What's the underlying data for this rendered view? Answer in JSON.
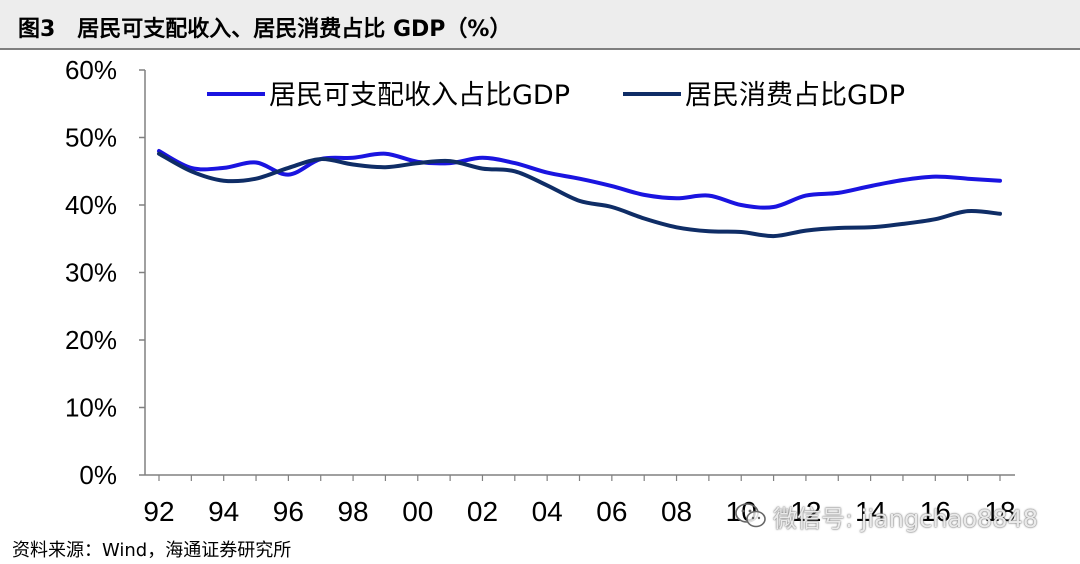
{
  "header": {
    "title": "图3　居民可支配收入、居民消费占比 GDP（%）"
  },
  "footer": {
    "source": "资料来源：Wind，海通证券研究所"
  },
  "watermark": {
    "text": "微信号: jiangchao8848"
  },
  "colors": {
    "income": "#1a14e0",
    "consumption": "#0f2d66",
    "axis": "#808080"
  },
  "chart_data": {
    "type": "line",
    "x": [
      1992,
      1993,
      1994,
      1995,
      1996,
      1997,
      1998,
      1999,
      2000,
      2001,
      2002,
      2003,
      2004,
      2005,
      2006,
      2007,
      2008,
      2009,
      2010,
      2011,
      2012,
      2013,
      2014,
      2015,
      2016,
      2017,
      2018
    ],
    "x_tick_labels": [
      "92",
      "94",
      "96",
      "98",
      "00",
      "02",
      "04",
      "06",
      "08",
      "10",
      "12",
      "14",
      "16",
      "18"
    ],
    "y_tick_labels": [
      "0%",
      "10%",
      "20%",
      "30%",
      "40%",
      "50%",
      "60%"
    ],
    "ylim": [
      0,
      60
    ],
    "legend_position": "top",
    "series": [
      {
        "name": "居民可支配收入占比GDP",
        "color": "#1a14e0",
        "values": [
          48.0,
          45.5,
          45.5,
          46.3,
          44.5,
          46.8,
          47.0,
          47.6,
          46.4,
          46.2,
          47.0,
          46.2,
          44.8,
          43.9,
          42.8,
          41.5,
          41.0,
          41.4,
          40.0,
          39.7,
          41.4,
          41.8,
          42.8,
          43.7,
          44.2,
          43.9,
          43.6
        ]
      },
      {
        "name": "居民消费占比GDP",
        "color": "#0f2d66",
        "values": [
          47.6,
          45.0,
          43.6,
          43.9,
          45.5,
          46.8,
          46.0,
          45.6,
          46.2,
          46.5,
          45.4,
          45.0,
          42.9,
          40.6,
          39.7,
          38.0,
          36.7,
          36.1,
          36.0,
          35.4,
          36.2,
          36.6,
          36.7,
          37.2,
          37.9,
          39.1,
          38.7
        ]
      }
    ]
  }
}
